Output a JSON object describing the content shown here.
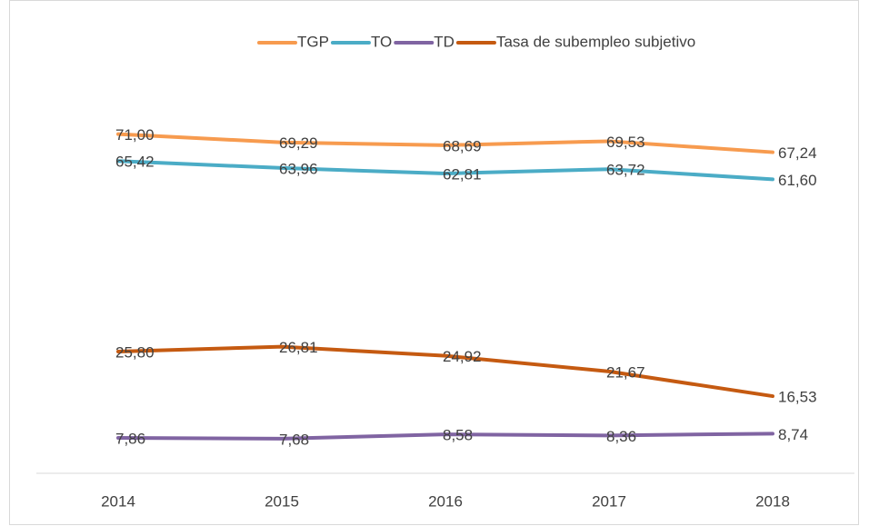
{
  "chart_data": {
    "type": "line",
    "categories": [
      "2014",
      "2015",
      "2016",
      "2017",
      "2018"
    ],
    "ylim": [
      0,
      80
    ],
    "legend": "top",
    "series": [
      {
        "name": "TGP",
        "color": "#f79b4f",
        "values": [
          71.0,
          69.29,
          68.69,
          69.53,
          67.24
        ],
        "value_labels": [
          "71,00",
          "69,29",
          "68,69",
          "69,53",
          "67,24"
        ]
      },
      {
        "name": "TO",
        "color": "#4bacc6",
        "values": [
          65.42,
          63.96,
          62.81,
          63.72,
          61.6
        ],
        "value_labels": [
          "65,42",
          "63,96",
          "62,81",
          "63,72",
          "61,60"
        ]
      },
      {
        "name": "TD",
        "color": "#8064a2",
        "values": [
          7.86,
          7.68,
          8.58,
          8.36,
          8.74
        ],
        "value_labels": [
          "7,86",
          "7,68",
          "8,58",
          "8,36",
          "8,74"
        ]
      },
      {
        "name": "Tasa de subempleo subjetivo",
        "color": "#c55a11",
        "values": [
          25.8,
          26.81,
          24.92,
          21.67,
          16.53
        ],
        "value_labels": [
          "25,80",
          "26,81",
          "24,92",
          "21,67",
          "16,53"
        ]
      }
    ]
  }
}
